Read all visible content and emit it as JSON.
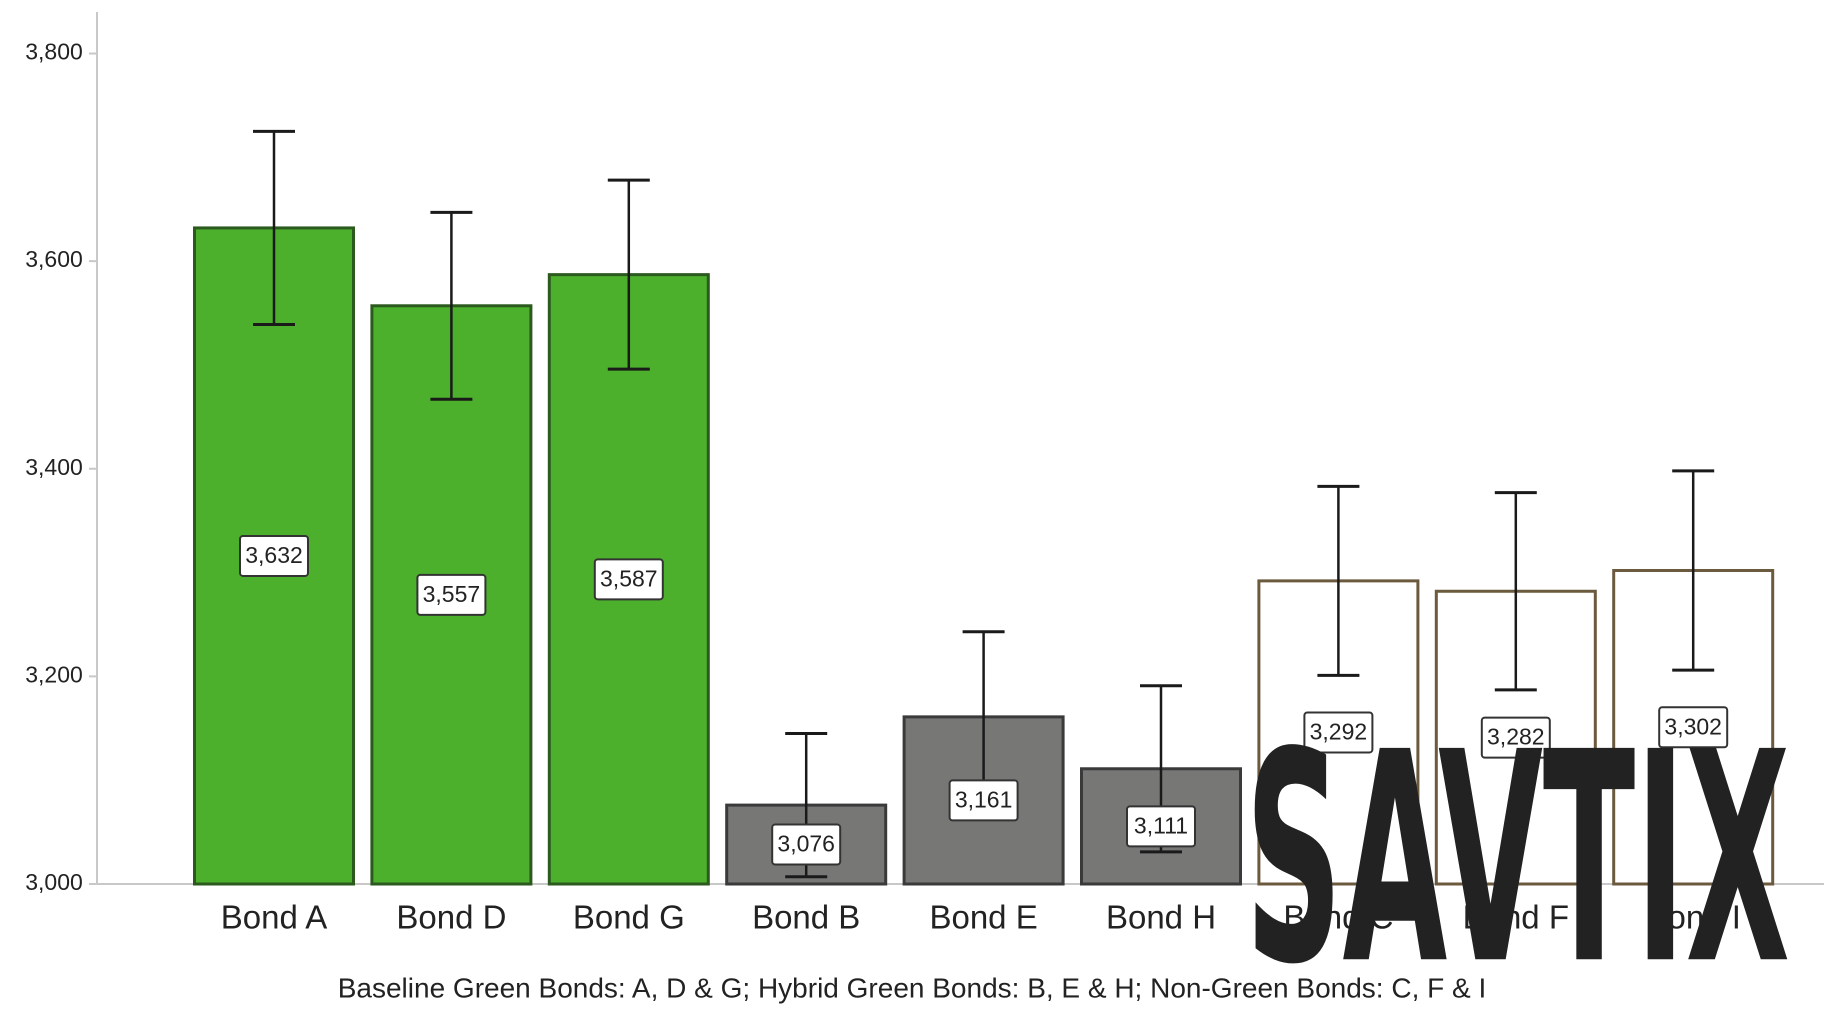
{
  "chart_data": {
    "type": "bar",
    "categories": [
      "Bond A",
      "Bond D",
      "Bond G",
      "Bond B",
      "Bond E",
      "Bond H",
      "Bond C",
      "Bond F",
      "Bond I"
    ],
    "values": [
      3632,
      3557,
      3587,
      3076,
      3161,
      3111,
      3292,
      3282,
      3302
    ],
    "value_labels": [
      "3,632",
      "3,557",
      "3,587",
      "3,076",
      "3,161",
      "3,111",
      "3,292",
      "3,282",
      "3,302"
    ],
    "errors": [
      93,
      90,
      91,
      69,
      82,
      80,
      91,
      95,
      96
    ],
    "colors": [
      "#4cb02d",
      "#4cb02d",
      "#4cb02d",
      "#777876",
      "#777876",
      "#777876",
      "#ffffff",
      "#ffffff",
      "#ffffff"
    ],
    "edgecolors": [
      "#2c5a1e",
      "#2c5a1e",
      "#2c5a1e",
      "#3a3a3a",
      "#3a3a3a",
      "#3a3a3a",
      "#6b5a3e",
      "#6b5a3e",
      "#6b5a3e"
    ],
    "ylim": [
      3000,
      3840
    ],
    "yticks": [
      {
        "value": 3000,
        "label": "3,000"
      },
      {
        "value": 3200,
        "label": "3,200"
      },
      {
        "value": 3400,
        "label": "3,400"
      },
      {
        "value": 3600,
        "label": "3,600"
      },
      {
        "value": 3800,
        "label": "3,800"
      }
    ],
    "xlabel": "Baseline Green Bonds: A, D & G; Hybrid Green Bonds: B, E & H; Non-Green Bonds: C, F & I",
    "watermark": "SAVTIX"
  }
}
